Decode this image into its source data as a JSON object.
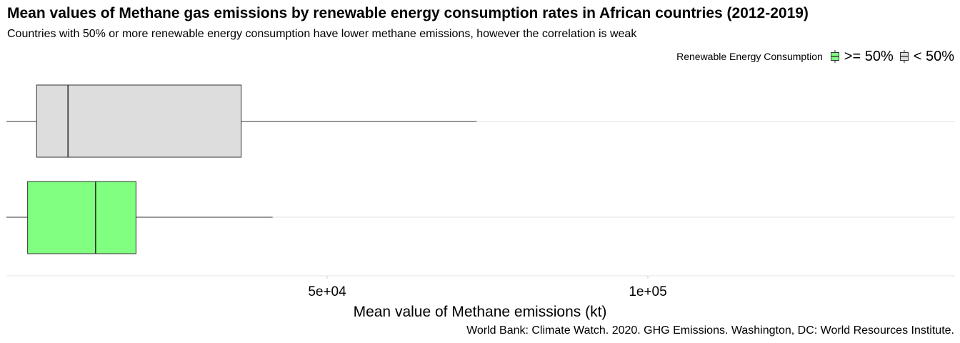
{
  "chart_data": {
    "type": "boxplot",
    "orientation": "horizontal",
    "title": "Mean values of Methane gas emissions by renewable energy consumption rates in African countries (2012-2019)",
    "subtitle": "Countries with 50% or more renewable energy consumption have lower methane emissions, however the correlation is weak",
    "xlabel": "Mean value of Methane emissions (kt)",
    "ylabel": "",
    "caption": "World Bank: Climate Watch. 2020. GHG Emissions. Washington, DC: World Resources Institute.",
    "xlim": [
      0,
      148000
    ],
    "xticks": [
      {
        "value": 50000,
        "label": "5e+04"
      },
      {
        "value": 100000,
        "label": "1e+05"
      }
    ],
    "grid": true,
    "legend": {
      "title": "Renewable Energy Consumption",
      "position": "top-right",
      "items": [
        {
          "label": ">= 50%",
          "color": "#80ff80"
        },
        {
          "label": "< 50%",
          "color": "#dddddd"
        }
      ]
    },
    "series": [
      {
        "name": ">= 50%",
        "color": "#80ff80",
        "whisker_low": 0,
        "q1": 3300,
        "median": 13900,
        "q3": 20200,
        "whisker_high": 41500
      },
      {
        "name": "< 50%",
        "color": "#dddddd",
        "whisker_low": 0,
        "q1": 4700,
        "median": 9600,
        "q3": 36600,
        "whisker_high": 73300
      }
    ]
  }
}
